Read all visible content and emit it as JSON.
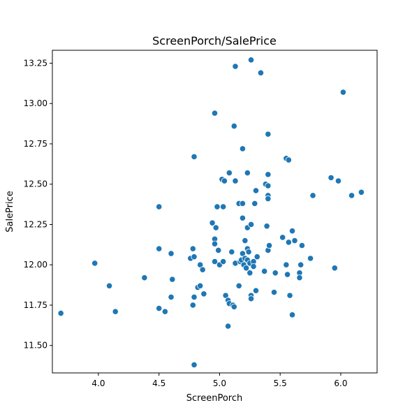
{
  "chart_data": {
    "type": "scatter",
    "title": "ScreenPorch/SalePrice",
    "xlabel": "ScreenPorch",
    "ylabel": "SalePrice",
    "xlim": [
      3.62,
      6.3
    ],
    "ylim": [
      11.33,
      13.33
    ],
    "xticks": [
      "4.0",
      "4.5",
      "5.0",
      "5.5",
      "6.0"
    ],
    "yticks": [
      "11.50",
      "11.75",
      "12.00",
      "12.25",
      "12.50",
      "12.75",
      "13.00",
      "13.25"
    ],
    "grid": false,
    "marker_color": "#1f77b4",
    "points": [
      {
        "x": 3.69,
        "y": 11.7
      },
      {
        "x": 3.97,
        "y": 12.01
      },
      {
        "x": 4.09,
        "y": 11.87
      },
      {
        "x": 4.14,
        "y": 11.71
      },
      {
        "x": 4.38,
        "y": 11.92
      },
      {
        "x": 4.5,
        "y": 12.36
      },
      {
        "x": 4.5,
        "y": 12.1
      },
      {
        "x": 4.5,
        "y": 11.73
      },
      {
        "x": 4.55,
        "y": 11.71
      },
      {
        "x": 4.6,
        "y": 12.07
      },
      {
        "x": 4.61,
        "y": 11.91
      },
      {
        "x": 4.6,
        "y": 11.8
      },
      {
        "x": 4.76,
        "y": 12.04
      },
      {
        "x": 4.79,
        "y": 12.67
      },
      {
        "x": 4.78,
        "y": 12.1
      },
      {
        "x": 4.79,
        "y": 12.05
      },
      {
        "x": 4.79,
        "y": 11.8
      },
      {
        "x": 4.78,
        "y": 11.75
      },
      {
        "x": 4.79,
        "y": 11.38
      },
      {
        "x": 4.82,
        "y": 11.86
      },
      {
        "x": 4.84,
        "y": 12.0
      },
      {
        "x": 4.84,
        "y": 11.87
      },
      {
        "x": 4.86,
        "y": 11.97
      },
      {
        "x": 4.87,
        "y": 11.82
      },
      {
        "x": 4.94,
        "y": 12.26
      },
      {
        "x": 4.96,
        "y": 12.94
      },
      {
        "x": 4.96,
        "y": 12.16
      },
      {
        "x": 4.96,
        "y": 12.13
      },
      {
        "x": 4.96,
        "y": 12.02
      },
      {
        "x": 4.97,
        "y": 12.23
      },
      {
        "x": 4.98,
        "y": 12.36
      },
      {
        "x": 4.99,
        "y": 12.09
      },
      {
        "x": 5.0,
        "y": 12.0
      },
      {
        "x": 5.02,
        "y": 12.53
      },
      {
        "x": 5.03,
        "y": 12.36
      },
      {
        "x": 5.03,
        "y": 12.02
      },
      {
        "x": 5.04,
        "y": 12.52
      },
      {
        "x": 5.05,
        "y": 11.81
      },
      {
        "x": 5.07,
        "y": 11.78
      },
      {
        "x": 5.07,
        "y": 11.62
      },
      {
        "x": 5.08,
        "y": 12.57
      },
      {
        "x": 5.08,
        "y": 11.76
      },
      {
        "x": 5.1,
        "y": 12.08
      },
      {
        "x": 5.11,
        "y": 11.75
      },
      {
        "x": 5.12,
        "y": 12.86
      },
      {
        "x": 5.12,
        "y": 11.74
      },
      {
        "x": 5.13,
        "y": 13.23
      },
      {
        "x": 5.13,
        "y": 12.52
      },
      {
        "x": 5.13,
        "y": 12.01
      },
      {
        "x": 5.16,
        "y": 12.38
      },
      {
        "x": 5.16,
        "y": 11.87
      },
      {
        "x": 5.17,
        "y": 12.02
      },
      {
        "x": 5.18,
        "y": 12.03
      },
      {
        "x": 5.19,
        "y": 12.72
      },
      {
        "x": 5.19,
        "y": 12.38
      },
      {
        "x": 5.19,
        "y": 12.29
      },
      {
        "x": 5.19,
        "y": 12.07
      },
      {
        "x": 5.2,
        "y": 12.0
      },
      {
        "x": 5.21,
        "y": 12.15
      },
      {
        "x": 5.21,
        "y": 12.04
      },
      {
        "x": 5.22,
        "y": 11.98
      },
      {
        "x": 5.23,
        "y": 12.57
      },
      {
        "x": 5.23,
        "y": 12.23
      },
      {
        "x": 5.23,
        "y": 12.1
      },
      {
        "x": 5.23,
        "y": 12.03
      },
      {
        "x": 5.24,
        "y": 12.08
      },
      {
        "x": 5.25,
        "y": 12.01
      },
      {
        "x": 5.25,
        "y": 11.95
      },
      {
        "x": 5.26,
        "y": 13.27
      },
      {
        "x": 5.26,
        "y": 12.25
      },
      {
        "x": 5.26,
        "y": 11.81
      },
      {
        "x": 5.26,
        "y": 11.79
      },
      {
        "x": 5.28,
        "y": 12.02
      },
      {
        "x": 5.28,
        "y": 11.99
      },
      {
        "x": 5.29,
        "y": 12.38
      },
      {
        "x": 5.3,
        "y": 12.46
      },
      {
        "x": 5.3,
        "y": 11.84
      },
      {
        "x": 5.31,
        "y": 12.05
      },
      {
        "x": 5.34,
        "y": 13.19
      },
      {
        "x": 5.37,
        "y": 11.96
      },
      {
        "x": 5.38,
        "y": 12.5
      },
      {
        "x": 5.39,
        "y": 12.24
      },
      {
        "x": 5.4,
        "y": 12.81
      },
      {
        "x": 5.4,
        "y": 12.56
      },
      {
        "x": 5.4,
        "y": 12.49
      },
      {
        "x": 5.4,
        "y": 12.43
      },
      {
        "x": 5.4,
        "y": 12.41
      },
      {
        "x": 5.4,
        "y": 12.09
      },
      {
        "x": 5.41,
        "y": 12.12
      },
      {
        "x": 5.45,
        "y": 11.83
      },
      {
        "x": 5.46,
        "y": 11.95
      },
      {
        "x": 5.52,
        "y": 12.17
      },
      {
        "x": 5.55,
        "y": 12.66
      },
      {
        "x": 5.55,
        "y": 12.0
      },
      {
        "x": 5.56,
        "y": 11.94
      },
      {
        "x": 5.57,
        "y": 12.65
      },
      {
        "x": 5.57,
        "y": 12.14
      },
      {
        "x": 5.58,
        "y": 11.81
      },
      {
        "x": 5.6,
        "y": 12.21
      },
      {
        "x": 5.6,
        "y": 11.69
      },
      {
        "x": 5.62,
        "y": 12.15
      },
      {
        "x": 5.66,
        "y": 11.95
      },
      {
        "x": 5.66,
        "y": 11.92
      },
      {
        "x": 5.67,
        "y": 12.0
      },
      {
        "x": 5.68,
        "y": 12.12
      },
      {
        "x": 5.75,
        "y": 12.04
      },
      {
        "x": 5.77,
        "y": 12.43
      },
      {
        "x": 5.92,
        "y": 12.54
      },
      {
        "x": 5.95,
        "y": 11.98
      },
      {
        "x": 5.98,
        "y": 12.52
      },
      {
        "x": 6.02,
        "y": 13.07
      },
      {
        "x": 6.09,
        "y": 12.43
      },
      {
        "x": 6.17,
        "y": 12.45
      }
    ]
  }
}
